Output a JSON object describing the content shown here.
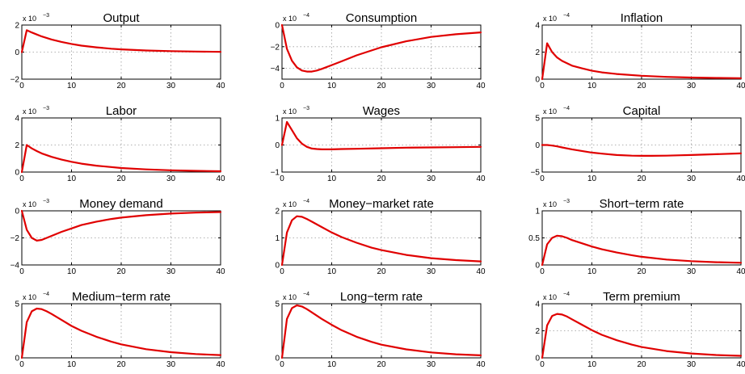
{
  "line_color": "#e00000",
  "chart_data": [
    {
      "type": "line",
      "title": "Output",
      "multiplier": "x 10",
      "exponent": "-3",
      "xlim": [
        0,
        40
      ],
      "ylim": [
        -2,
        2
      ],
      "xticks": [
        0,
        10,
        20,
        30,
        40
      ],
      "yticks": [
        -2,
        0,
        2
      ],
      "x": [
        0,
        1,
        2,
        3,
        4,
        6,
        8,
        10,
        12,
        15,
        18,
        20,
        25,
        30,
        35,
        40
      ],
      "y": [
        0,
        1.62,
        1.45,
        1.3,
        1.16,
        0.93,
        0.75,
        0.6,
        0.48,
        0.35,
        0.25,
        0.2,
        0.12,
        0.07,
        0.04,
        0.02
      ]
    },
    {
      "type": "line",
      "title": "Consumption",
      "multiplier": "x 10",
      "exponent": "-4",
      "xlim": [
        0,
        40
      ],
      "ylim": [
        -5,
        0
      ],
      "xticks": [
        0,
        10,
        20,
        30,
        40
      ],
      "yticks": [
        -4,
        -2,
        0
      ],
      "x": [
        0,
        1,
        2,
        3,
        4,
        5,
        6,
        7,
        8,
        10,
        12,
        15,
        18,
        20,
        25,
        30,
        35,
        40
      ],
      "y": [
        0,
        -2.2,
        -3.3,
        -3.9,
        -4.2,
        -4.3,
        -4.3,
        -4.2,
        -4.05,
        -3.7,
        -3.35,
        -2.8,
        -2.35,
        -2.05,
        -1.5,
        -1.1,
        -0.85,
        -0.68
      ]
    },
    {
      "type": "line",
      "title": "Inflation",
      "multiplier": "x 10",
      "exponent": "-4",
      "xlim": [
        0,
        40
      ],
      "ylim": [
        0,
        4
      ],
      "xticks": [
        0,
        10,
        20,
        30,
        40
      ],
      "yticks": [
        0,
        2,
        4
      ],
      "x": [
        0,
        1,
        2,
        3,
        4,
        6,
        8,
        10,
        12,
        15,
        20,
        25,
        30,
        35,
        40
      ],
      "y": [
        0,
        2.65,
        2.0,
        1.6,
        1.35,
        1.0,
        0.8,
        0.62,
        0.5,
        0.38,
        0.25,
        0.17,
        0.12,
        0.09,
        0.07
      ]
    },
    {
      "type": "line",
      "title": "Labor",
      "multiplier": "x 10",
      "exponent": "-3",
      "xlim": [
        0,
        40
      ],
      "ylim": [
        0,
        4
      ],
      "xticks": [
        0,
        10,
        20,
        30,
        40
      ],
      "yticks": [
        0,
        2,
        4
      ],
      "x": [
        0,
        1,
        2,
        3,
        4,
        6,
        8,
        10,
        12,
        15,
        20,
        25,
        30,
        35,
        40
      ],
      "y": [
        0,
        2.0,
        1.75,
        1.55,
        1.38,
        1.12,
        0.92,
        0.76,
        0.62,
        0.47,
        0.3,
        0.2,
        0.13,
        0.09,
        0.06
      ]
    },
    {
      "type": "line",
      "title": "Wages",
      "multiplier": "x 10",
      "exponent": "-3",
      "xlim": [
        0,
        40
      ],
      "ylim": [
        -1,
        1
      ],
      "xticks": [
        0,
        10,
        20,
        30,
        40
      ],
      "yticks": [
        -1,
        0,
        1
      ],
      "x": [
        0,
        1,
        2,
        3,
        4,
        5,
        6,
        7,
        8,
        10,
        12,
        15,
        20,
        25,
        30,
        35,
        40
      ],
      "y": [
        0,
        0.85,
        0.55,
        0.25,
        0.05,
        -0.07,
        -0.13,
        -0.15,
        -0.16,
        -0.16,
        -0.15,
        -0.14,
        -0.12,
        -0.1,
        -0.09,
        -0.08,
        -0.07
      ]
    },
    {
      "type": "line",
      "title": "Capital",
      "multiplier": "x 10",
      "exponent": "-4",
      "xlim": [
        0,
        40
      ],
      "ylim": [
        -5,
        5
      ],
      "xticks": [
        0,
        10,
        20,
        30,
        40
      ],
      "yticks": [
        -5,
        0,
        5
      ],
      "x": [
        0,
        1,
        2,
        3,
        4,
        6,
        8,
        10,
        12,
        15,
        18,
        20,
        22,
        25,
        28,
        30,
        35,
        40
      ],
      "y": [
        0,
        0,
        -0.1,
        -0.25,
        -0.45,
        -0.8,
        -1.1,
        -1.4,
        -1.6,
        -1.85,
        -1.97,
        -2.0,
        -2.0,
        -1.97,
        -1.9,
        -1.85,
        -1.7,
        -1.55
      ]
    },
    {
      "type": "line",
      "title": "Money demand",
      "multiplier": "x 10",
      "exponent": "-3",
      "xlim": [
        0,
        40
      ],
      "ylim": [
        -4,
        0
      ],
      "xticks": [
        0,
        10,
        20,
        30,
        40
      ],
      "yticks": [
        -4,
        -2,
        0
      ],
      "x": [
        0,
        1,
        2,
        3,
        4,
        5,
        6,
        8,
        10,
        12,
        15,
        18,
        20,
        25,
        30,
        35,
        40
      ],
      "y": [
        0,
        -1.4,
        -2.0,
        -2.2,
        -2.15,
        -2.0,
        -1.85,
        -1.55,
        -1.3,
        -1.05,
        -0.8,
        -0.6,
        -0.5,
        -0.32,
        -0.2,
        -0.13,
        -0.09
      ]
    },
    {
      "type": "line",
      "title": "Money−market rate",
      "multiplier": "x 10",
      "exponent": "-4",
      "xlim": [
        0,
        40
      ],
      "ylim": [
        0,
        2
      ],
      "xticks": [
        0,
        10,
        20,
        30,
        40
      ],
      "yticks": [
        0,
        1,
        2
      ],
      "x": [
        0,
        1,
        2,
        3,
        4,
        5,
        6,
        8,
        10,
        12,
        15,
        18,
        20,
        25,
        30,
        35,
        40
      ],
      "y": [
        0,
        1.2,
        1.65,
        1.8,
        1.78,
        1.7,
        1.6,
        1.4,
        1.2,
        1.03,
        0.82,
        0.64,
        0.55,
        0.37,
        0.25,
        0.18,
        0.13
      ]
    },
    {
      "type": "line",
      "title": "Short−term rate",
      "multiplier": "x 10",
      "exponent": "-3",
      "xlim": [
        0,
        40
      ],
      "ylim": [
        0,
        1
      ],
      "xticks": [
        0,
        10,
        20,
        30,
        40
      ],
      "yticks": [
        0,
        0.5,
        1
      ],
      "x": [
        0,
        1,
        2,
        3,
        4,
        5,
        6,
        8,
        10,
        12,
        15,
        18,
        20,
        25,
        30,
        35,
        40
      ],
      "y": [
        0,
        0.38,
        0.5,
        0.54,
        0.53,
        0.5,
        0.46,
        0.4,
        0.34,
        0.29,
        0.23,
        0.18,
        0.15,
        0.1,
        0.07,
        0.05,
        0.04
      ]
    },
    {
      "type": "line",
      "title": "Medium−term rate",
      "multiplier": "x 10",
      "exponent": "-4",
      "xlim": [
        0,
        40
      ],
      "ylim": [
        0,
        5
      ],
      "xticks": [
        0,
        10,
        20,
        30,
        40
      ],
      "yticks": [
        0,
        5
      ],
      "x": [
        0,
        1,
        2,
        3,
        4,
        5,
        6,
        8,
        10,
        12,
        15,
        18,
        20,
        25,
        30,
        35,
        40
      ],
      "y": [
        0,
        3.3,
        4.3,
        4.55,
        4.5,
        4.3,
        4.05,
        3.5,
        2.95,
        2.5,
        1.95,
        1.5,
        1.25,
        0.8,
        0.52,
        0.35,
        0.25
      ]
    },
    {
      "type": "line",
      "title": "Long−term rate",
      "multiplier": "x 10",
      "exponent": "-4",
      "xlim": [
        0,
        40
      ],
      "ylim": [
        0,
        5
      ],
      "xticks": [
        0,
        10,
        20,
        30,
        40
      ],
      "yticks": [
        0,
        5
      ],
      "x": [
        0,
        1,
        2,
        3,
        4,
        5,
        6,
        8,
        10,
        12,
        15,
        18,
        20,
        25,
        30,
        35,
        40
      ],
      "y": [
        0,
        3.6,
        4.6,
        4.85,
        4.75,
        4.5,
        4.2,
        3.6,
        3.05,
        2.55,
        1.95,
        1.48,
        1.22,
        0.78,
        0.5,
        0.33,
        0.23
      ]
    },
    {
      "type": "line",
      "title": "Term premium",
      "multiplier": "x 10",
      "exponent": "-4",
      "xlim": [
        0,
        40
      ],
      "ylim": [
        0,
        4
      ],
      "xticks": [
        0,
        10,
        20,
        30,
        40
      ],
      "yticks": [
        0,
        2,
        4
      ],
      "x": [
        0,
        1,
        2,
        3,
        4,
        5,
        6,
        8,
        10,
        12,
        15,
        18,
        20,
        25,
        30,
        35,
        40
      ],
      "y": [
        0,
        2.4,
        3.1,
        3.25,
        3.2,
        3.05,
        2.85,
        2.45,
        2.05,
        1.7,
        1.3,
        0.98,
        0.8,
        0.5,
        0.32,
        0.21,
        0.15
      ]
    }
  ]
}
